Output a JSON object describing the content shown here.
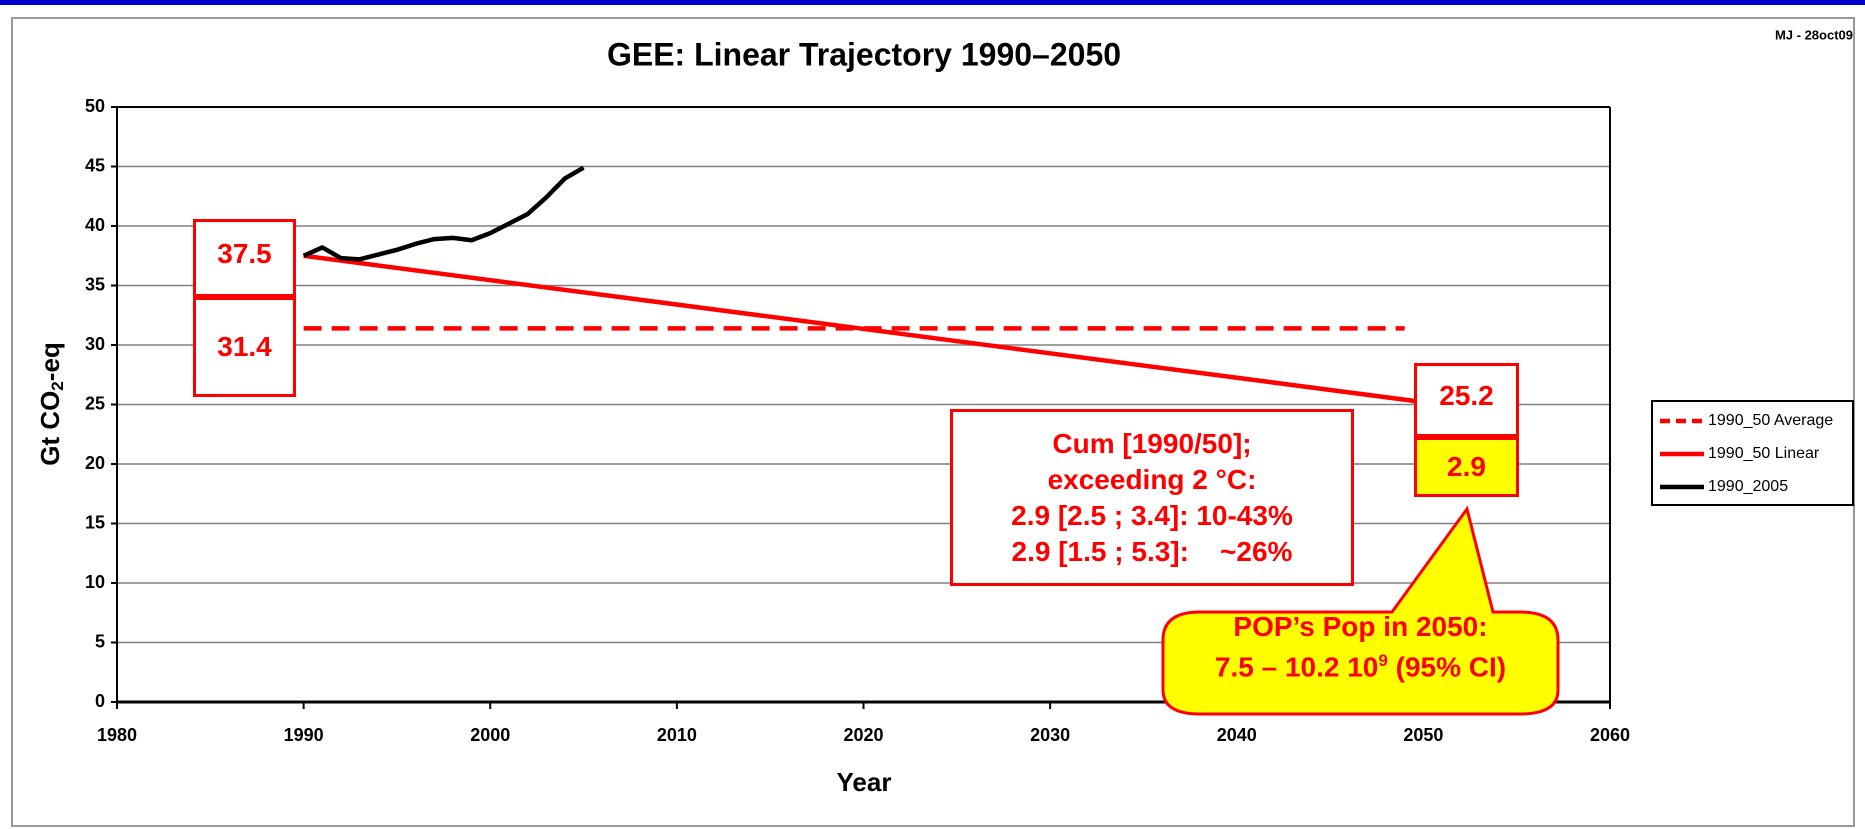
{
  "chart_data": {
    "type": "line",
    "title": "GEE: Linear Trajectory 1990–2050",
    "x_label": "Year",
    "y_label_parts": [
      "Gt CO",
      "2",
      "-eq"
    ],
    "xlim": [
      1980,
      2060
    ],
    "xticks": [
      1980,
      1990,
      2000,
      2010,
      2020,
      2030,
      2040,
      2050,
      2060
    ],
    "ylim": [
      0,
      50
    ],
    "yticks": [
      0,
      5,
      10,
      15,
      20,
      25,
      30,
      35,
      40,
      45,
      50
    ],
    "grid": true,
    "legend": "right",
    "series": [
      {
        "name": "1990_50 Average",
        "color": "#ff0000",
        "line_style": "dashed",
        "x": [
          1990,
          2049
        ],
        "values": [
          31.4,
          31.4
        ]
      },
      {
        "name": "1990_50 Linear",
        "color": "#ff0000",
        "line_style": "solid",
        "x": [
          1990,
          2050
        ],
        "values": [
          37.5,
          25.2
        ]
      },
      {
        "name": "1990_2005",
        "color": "#000000",
        "line_style": "solid",
        "x": [
          1990,
          1991,
          1992,
          1993,
          1994,
          1995,
          1996,
          1997,
          1998,
          1999,
          2000,
          2001,
          2002,
          2003,
          2004,
          2005
        ],
        "values": [
          37.5,
          38.2,
          37.3,
          37.2,
          37.6,
          38.0,
          38.5,
          38.9,
          39.0,
          38.8,
          39.4,
          40.2,
          41.0,
          42.4,
          44.0,
          44.9
        ]
      }
    ],
    "annotations": {
      "note": "MJ - 28oct09",
      "cum_box": [
        "Cum [1990/50];",
        "exceeding 2 °C:",
        "2.9 [2.5 ; 3.4]: 10-43%",
        "2.9 [1.5 ; 5.3]:    ~26%"
      ],
      "yellow_box": "2.9",
      "callout_line1": "POP’s Pop in 2050:",
      "callout_line2": [
        "7.5 – 10.2 10",
        "9",
        " (95% CI)"
      ]
    }
  }
}
